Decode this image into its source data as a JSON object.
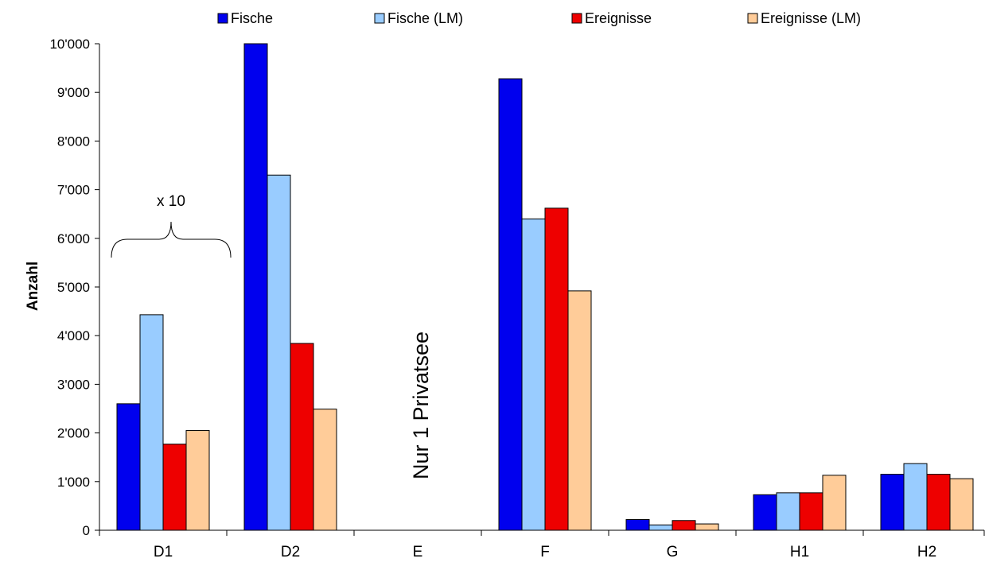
{
  "chart_data": {
    "type": "bar",
    "title": "",
    "xlabel": "",
    "ylabel": "Anzahl",
    "ylim": [
      0,
      10000
    ],
    "yticks": [
      0,
      1000,
      2000,
      3000,
      4000,
      5000,
      6000,
      7000,
      8000,
      9000,
      10000
    ],
    "ytick_labels": [
      "0",
      "1'000",
      "2'000",
      "3'000",
      "4'000",
      "5'000",
      "6'000",
      "7'000",
      "8'000",
      "9'000",
      "10'000"
    ],
    "categories": [
      "D1",
      "D2",
      "E",
      "F",
      "G",
      "H1",
      "H2"
    ],
    "series": [
      {
        "name": "Fische",
        "color": "#0000ee",
        "values": [
          2600,
          10000,
          0,
          9280,
          220,
          730,
          1150
        ]
      },
      {
        "name": "Fische (LM)",
        "color": "#99ccff",
        "values": [
          4430,
          7300,
          0,
          6400,
          110,
          770,
          1370
        ]
      },
      {
        "name": "Ereignisse",
        "color": "#ee0000",
        "values": [
          1770,
          3840,
          0,
          6620,
          200,
          770,
          1150
        ]
      },
      {
        "name": "Ereignisse (LM)",
        "color": "#ffcc99",
        "values": [
          2050,
          2490,
          0,
          4920,
          130,
          1130,
          1060
        ]
      }
    ],
    "legend_position": "top",
    "grid": false,
    "annotations": [
      {
        "text": "x 10",
        "category": "D1",
        "kind": "brace"
      },
      {
        "text": "Nur 1 Privatsee",
        "category": "E",
        "kind": "rotated"
      }
    ]
  }
}
